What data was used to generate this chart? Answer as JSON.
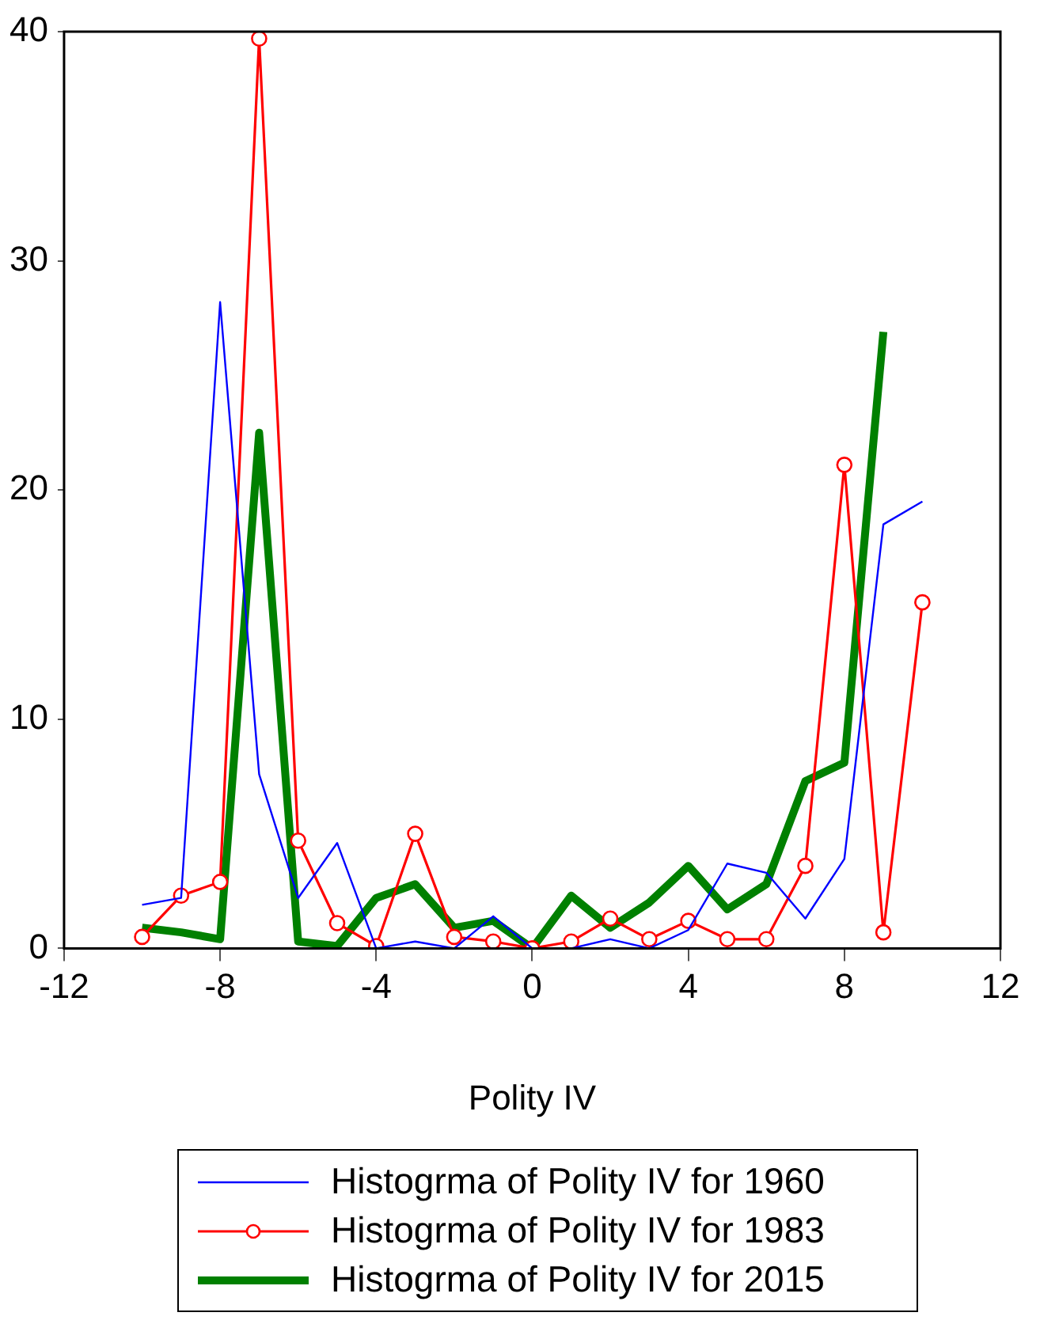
{
  "chart_data": {
    "type": "line",
    "xlabel": "Polity IV",
    "x": [
      -10,
      -9,
      -8,
      -7,
      -6,
      -5,
      -4,
      -3,
      -2,
      -1,
      0,
      1,
      2,
      3,
      4,
      5,
      6,
      7,
      8,
      9,
      10
    ],
    "xlim": [
      -12,
      12
    ],
    "xticks": [
      -12,
      -8,
      -4,
      0,
      4,
      8,
      12
    ],
    "ylim": [
      0,
      40
    ],
    "yticks": [
      0,
      10,
      20,
      30,
      40
    ],
    "grid": false,
    "legend": "bottom",
    "line_style": "solid",
    "series": [
      {
        "name": "Histogrma of Polity IV for 1960",
        "color": "#0000ff",
        "marker": "none",
        "values": [
          1.9,
          2.2,
          28.2,
          7.6,
          2.2,
          4.6,
          0,
          0.3,
          0,
          1.4,
          0,
          0,
          0.4,
          0,
          0.8,
          3.7,
          3.3,
          1.3,
          3.9,
          18.5,
          19.5
        ]
      },
      {
        "name": "Histogrma of Polity IV for 1983",
        "color": "#ff0000",
        "marker": "circle",
        "values": [
          0.5,
          2.3,
          2.9,
          39.7,
          4.7,
          1.1,
          0.1,
          5.0,
          0.5,
          0.3,
          0,
          0.3,
          1.3,
          0.4,
          1.2,
          0.4,
          0.4,
          3.6,
          21.1,
          0.7,
          15.1
        ]
      },
      {
        "name": "Histogrma of Polity IV for 2015",
        "color": "#008000",
        "marker": "none",
        "values": [
          0.9,
          0.7,
          0.4,
          22.5,
          0.3,
          0.1,
          2.2,
          2.8,
          0.9,
          1.2,
          0,
          2.3,
          0.9,
          2.0,
          3.6,
          1.7,
          2.8,
          7.3,
          8.1,
          26.9,
          null
        ]
      }
    ]
  }
}
